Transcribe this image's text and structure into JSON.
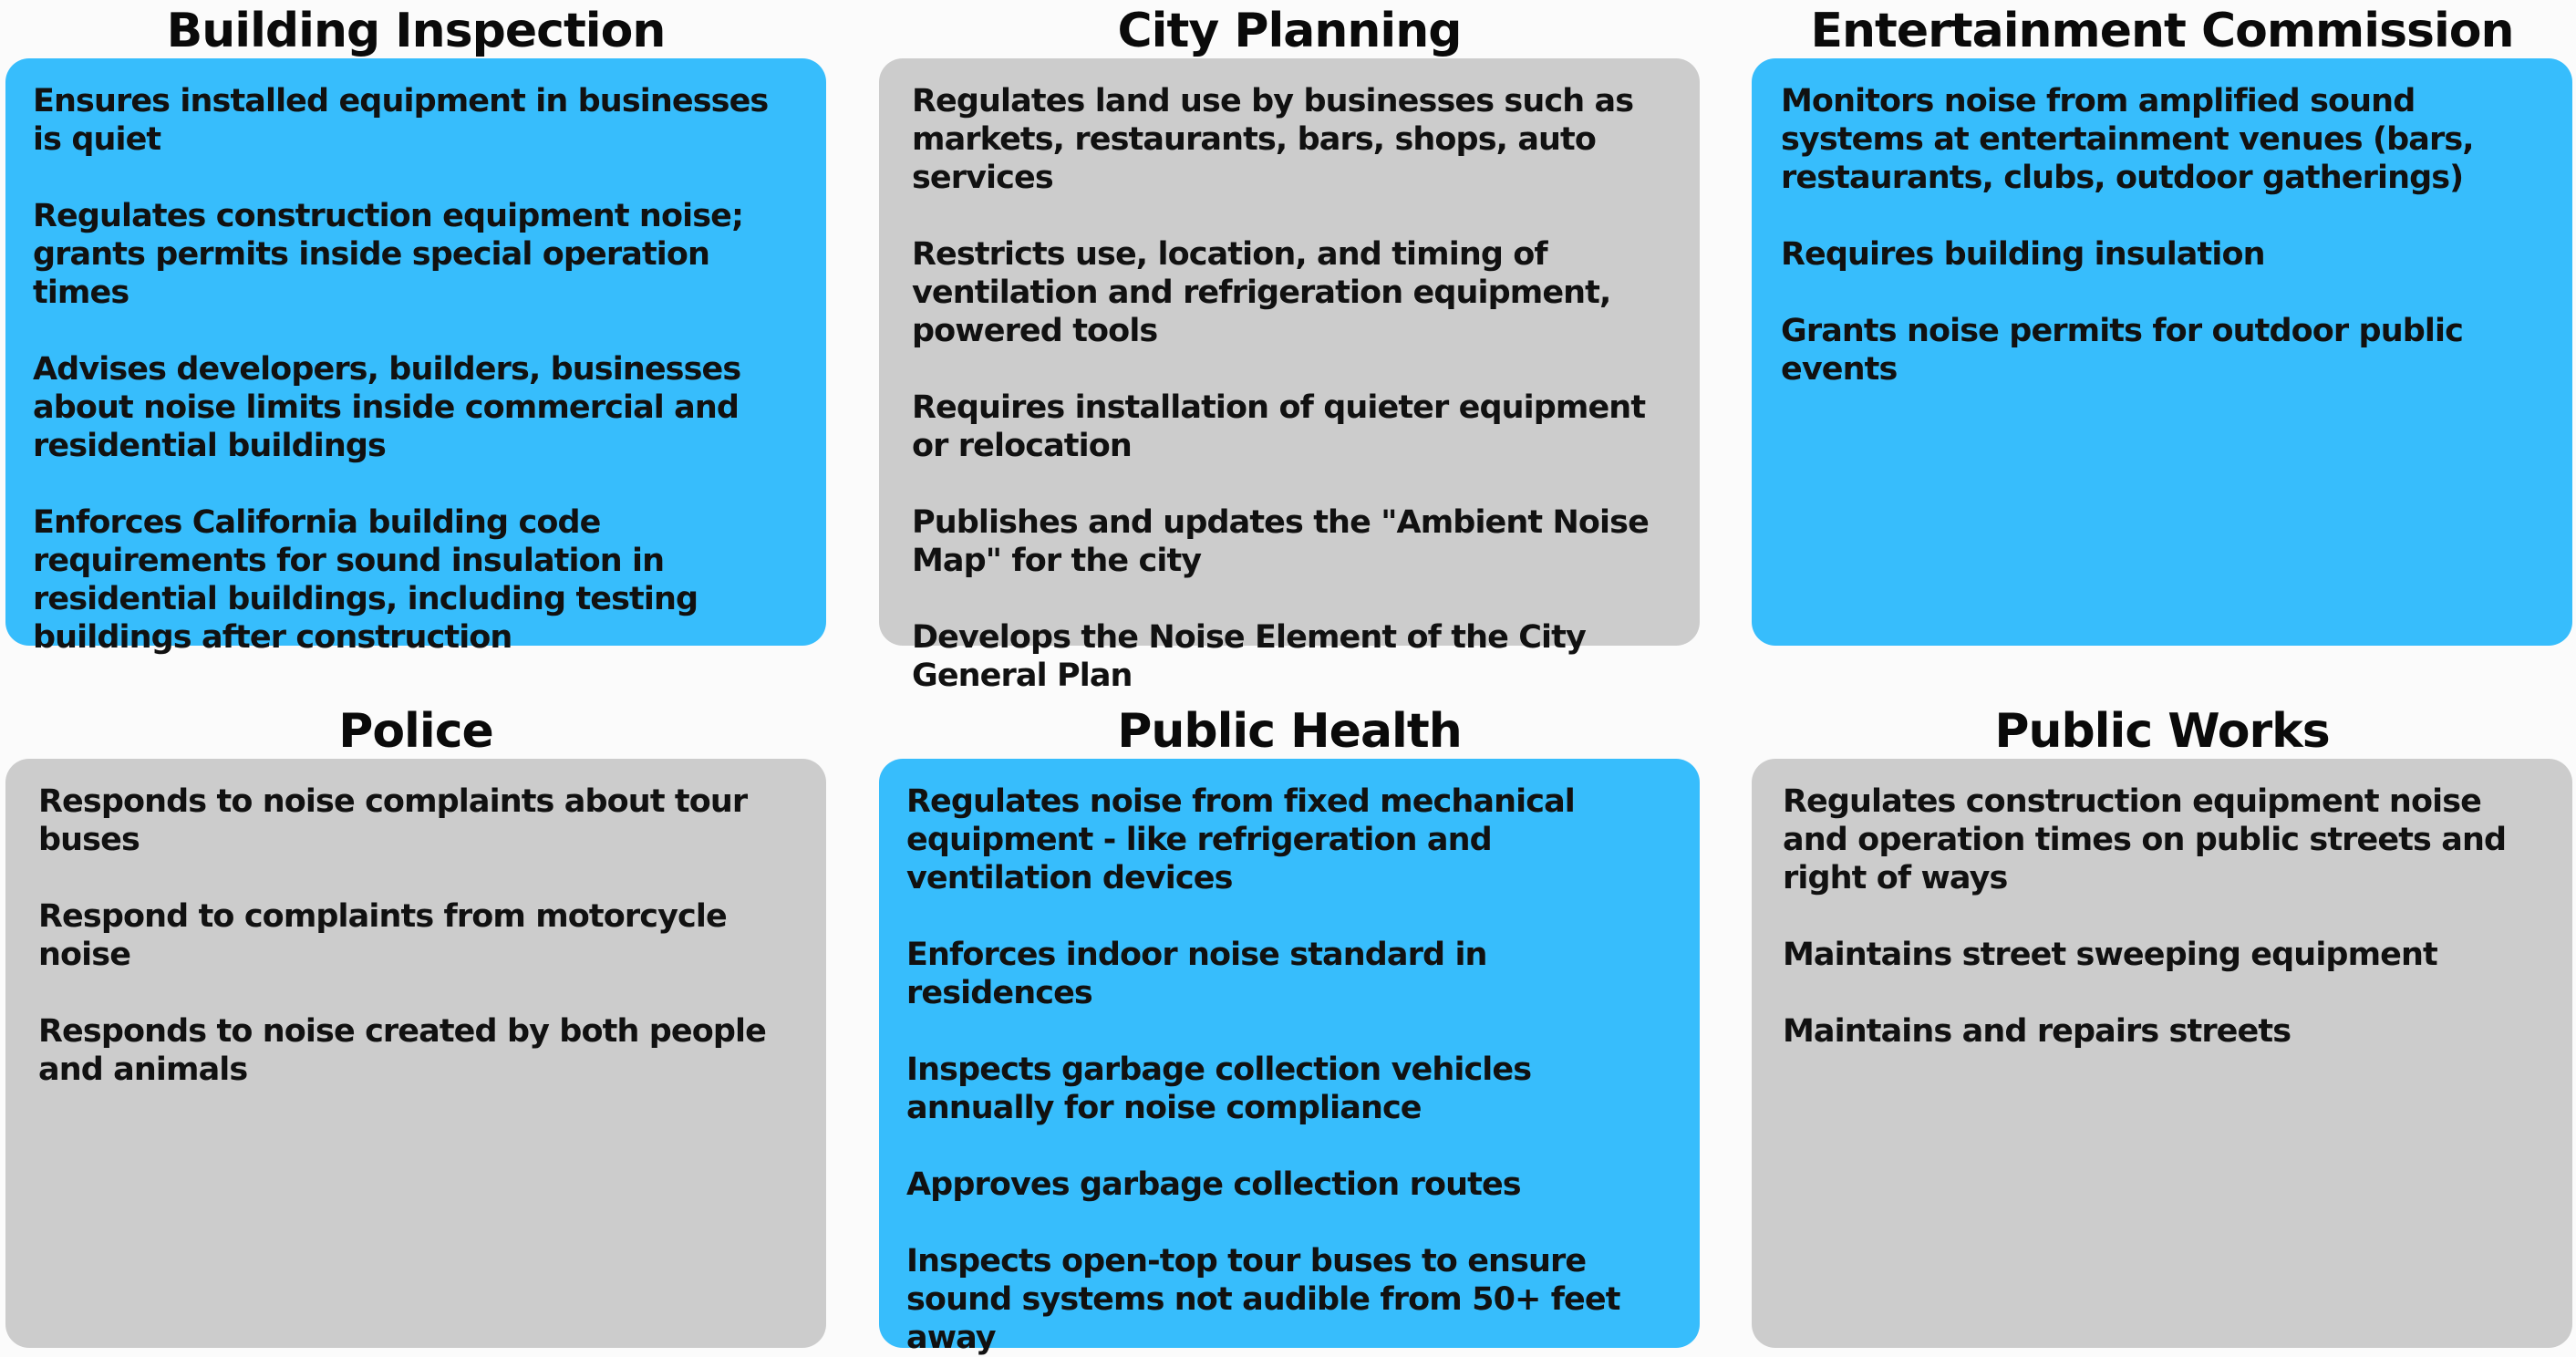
{
  "panels": [
    {
      "title": "Building Inspection",
      "color": "#37bdfc",
      "items": [
        "Ensures installed equipment in businesses is quiet",
        "Regulates construction equipment noise; grants permits inside special operation times",
        "Advises developers, builders, businesses about noise limits inside commercial and residential buildings",
        "Enforces California building code requirements for sound insulation in residential buildings, including testing buildings after construction"
      ]
    },
    {
      "title": "City Planning",
      "color": "#cccccc",
      "items": [
        "Regulates land use by businesses such as markets, restaurants, bars, shops, auto services",
        "Restricts use, location, and timing of ventilation and refrigeration equipment, powered tools",
        "Requires installation of quieter equipment or relocation",
        "Publishes and updates the \"Ambient Noise Map\" for the city",
        "Develops the Noise Element of the City General Plan"
      ]
    },
    {
      "title": "Entertainment Commission",
      "color": "#37bdfc",
      "items": [
        "Monitors noise from amplified sound systems at entertainment venues (bars, restaurants, clubs, outdoor gatherings)",
        "Requires building insulation",
        "Grants noise permits for outdoor public events"
      ]
    },
    {
      "title": "Police",
      "color": "#cccccc",
      "items": [
        "Responds to noise complaints about tour buses",
        "Respond to complaints from motorcycle noise",
        "Responds to noise created by both people and animals"
      ]
    },
    {
      "title": "Public Health",
      "color": "#37bdfc",
      "items": [
        "Regulates noise from fixed mechanical equipment - like refrigeration and ventilation devices",
        "Enforces indoor noise standard in residences",
        "Inspects garbage collection vehicles annually for noise compliance",
        "Approves garbage collection routes",
        "Inspects open-top tour buses to ensure sound systems not audible from 50+ feet away"
      ]
    },
    {
      "title": "Public Works",
      "color": "#cccccc",
      "items": [
        "Regulates construction equipment noise and operation times on public streets and right of ways",
        "Maintains street sweeping equipment",
        "Maintains and repairs streets"
      ]
    }
  ]
}
